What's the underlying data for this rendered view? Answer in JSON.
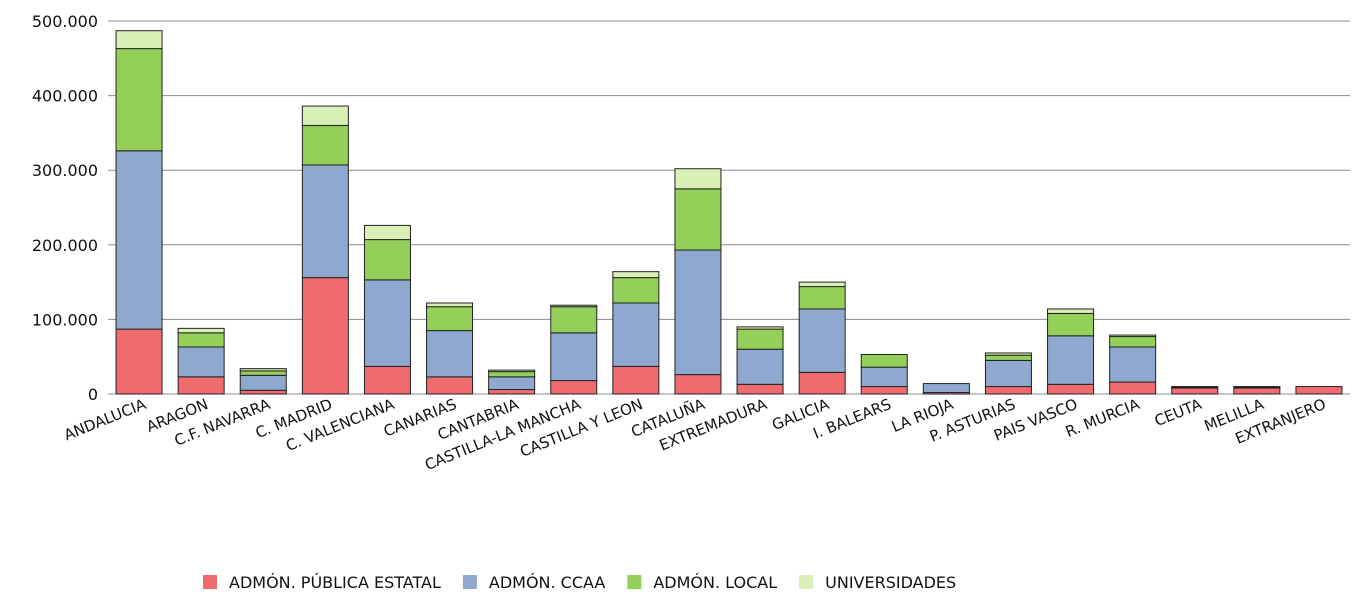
{
  "chart_data": {
    "type": "bar",
    "stacked": true,
    "title": "",
    "xlabel": "",
    "ylabel": "",
    "ylim": [
      0,
      500000
    ],
    "y_ticks": [
      {
        "value": 0,
        "label": "0"
      },
      {
        "value": 100000,
        "label": "100.000"
      },
      {
        "value": 200000,
        "label": "200.000"
      },
      {
        "value": 300000,
        "label": "300.000"
      },
      {
        "value": 400000,
        "label": "400.000"
      },
      {
        "value": 500000,
        "label": "500.000"
      }
    ],
    "grid": true,
    "legend_position": "bottom-center",
    "categories": [
      "ANDALUCIA",
      "ARAGON",
      "C.F. NAVARRA",
      "C. MADRID",
      "C. VALENCIANA",
      "CANARIAS",
      "CANTABRIA",
      "CASTILLA-LA MANCHA",
      "CASTILLA Y LEON",
      "CATALUÑA",
      "EXTREMADURA",
      "GALICIA",
      "I. BALEARS",
      "LA RIOJA",
      "P. ASTURIAS",
      "PAIS VASCO",
      "R. MURCIA",
      "CEUTA",
      "MELILLA",
      "EXTRANJERO"
    ],
    "series": [
      {
        "name": "ADMÓN. PÚBLICA ESTATAL",
        "color": "#f06b6e",
        "values": [
          87000,
          23000,
          5000,
          156000,
          37000,
          23000,
          6000,
          18000,
          37000,
          26000,
          13000,
          29000,
          10000,
          2000,
          10000,
          13000,
          16000,
          8000,
          8000,
          10000
        ]
      },
      {
        "name": "ADMÓN. CCAA",
        "color": "#8fa8cf",
        "values": [
          239000,
          40000,
          20000,
          151000,
          116000,
          62000,
          17000,
          64000,
          85000,
          167000,
          47000,
          85000,
          26000,
          12000,
          35000,
          65000,
          47000,
          1000,
          1000,
          0
        ]
      },
      {
        "name": "ADMÓN. LOCAL",
        "color": "#94cf5a",
        "values": [
          137000,
          19000,
          6000,
          53000,
          54000,
          32000,
          7000,
          35000,
          34000,
          82000,
          27000,
          30000,
          17000,
          0,
          7000,
          30000,
          14000,
          1000,
          1000,
          0
        ]
      },
      {
        "name": "UNIVERSIDADES",
        "color": "#d8f0b6",
        "values": [
          24000,
          6000,
          3000,
          26000,
          19000,
          5000,
          2000,
          2000,
          8000,
          27000,
          3000,
          6000,
          0,
          0,
          3000,
          6000,
          2000,
          0,
          0,
          0
        ]
      }
    ]
  }
}
